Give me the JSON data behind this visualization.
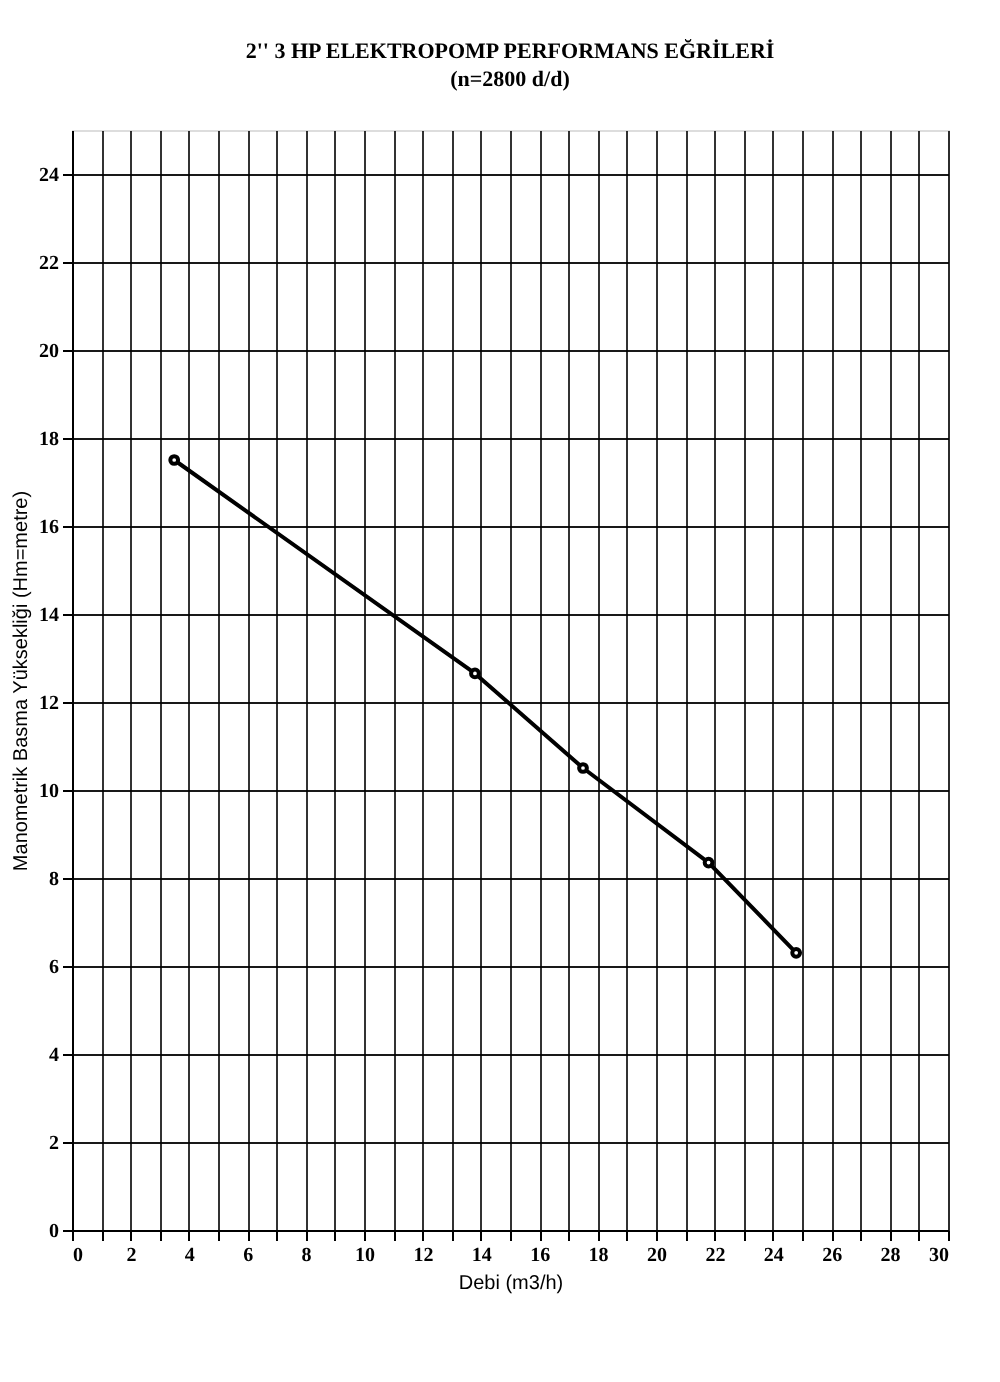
{
  "chart_data": {
    "type": "line",
    "title": "2'' 3 HP ELEKTROPOMP PERFORMANS EĞRİLERİ",
    "subtitle": "(n=2800 d/d)",
    "xlabel": "Debi (m3/h)",
    "ylabel": "Manometrik Basma Yüksekliği  (Hm=metre)",
    "x": [
      3.5,
      13.8,
      17.5,
      21.8,
      24.8
    ],
    "series": [
      {
        "color": "#000000",
        "values": [
          17.5,
          12.65,
          10.5,
          8.35,
          6.3
        ]
      }
    ],
    "xlim": [
      0,
      30
    ],
    "ylim": [
      0,
      25
    ],
    "xticks": [
      0,
      {
        "value": 1,
        "label": null
      },
      2,
      {
        "value": 3,
        "label": null
      },
      4,
      {
        "value": 5,
        "label": null
      },
      6,
      {
        "value": 7,
        "label": null
      },
      8,
      {
        "value": 9,
        "label": null
      },
      10,
      {
        "value": 11,
        "label": null
      },
      12,
      {
        "value": 13,
        "label": null
      },
      14,
      {
        "value": 15,
        "label": null
      },
      16,
      {
        "value": 17,
        "label": null
      },
      18,
      {
        "value": 19,
        "label": null
      },
      20,
      {
        "value": 21,
        "label": null
      },
      22,
      {
        "value": 23,
        "label": null
      },
      24,
      {
        "value": 25,
        "label": null
      },
      26,
      {
        "value": 27,
        "label": null
      },
      28,
      {
        "value": 29,
        "label": null
      },
      30
    ],
    "yticks": [
      0,
      2,
      4,
      6,
      8,
      10,
      12,
      14,
      16,
      18,
      20,
      22,
      24
    ],
    "grid": true,
    "marker": "circle",
    "line_style": "solid"
  }
}
